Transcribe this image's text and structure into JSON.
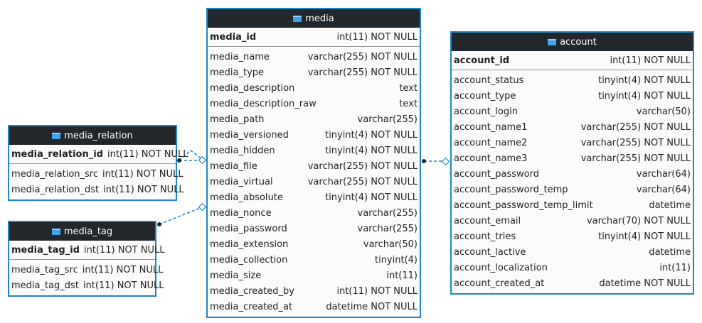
{
  "tables": [
    {
      "name": "media",
      "primary_key": {
        "name": "media_id",
        "type": "int(11) NOT NULL"
      },
      "columns": [
        {
          "name": "media_name",
          "type": "varchar(255) NOT NULL"
        },
        {
          "name": "media_type",
          "type": "varchar(255) NOT NULL"
        },
        {
          "name": "media_description",
          "type": "text"
        },
        {
          "name": "media_description_raw",
          "type": "text"
        },
        {
          "name": "media_path",
          "type": "varchar(255)"
        },
        {
          "name": "media_versioned",
          "type": "tinyint(4) NOT NULL"
        },
        {
          "name": "media_hidden",
          "type": "tinyint(4) NOT NULL"
        },
        {
          "name": "media_file",
          "type": "varchar(255) NOT NULL"
        },
        {
          "name": "media_virtual",
          "type": "varchar(255) NOT NULL"
        },
        {
          "name": "media_absolute",
          "type": "tinyint(4) NOT NULL"
        },
        {
          "name": "media_nonce",
          "type": "varchar(255)"
        },
        {
          "name": "media_password",
          "type": "varchar(255)"
        },
        {
          "name": "media_extension",
          "type": "varchar(50)"
        },
        {
          "name": "media_collection",
          "type": "tinyint(4)"
        },
        {
          "name": "media_size",
          "type": "int(11)"
        },
        {
          "name": "media_created_by",
          "type": "int(11) NOT NULL"
        },
        {
          "name": "media_created_at",
          "type": "datetime NOT NULL"
        }
      ]
    },
    {
      "name": "account",
      "primary_key": {
        "name": "account_id",
        "type": "int(11) NOT NULL"
      },
      "columns": [
        {
          "name": "account_status",
          "type": "tinyint(4) NOT NULL"
        },
        {
          "name": "account_type",
          "type": "tinyint(4) NOT NULL"
        },
        {
          "name": "account_login",
          "type": "varchar(50)"
        },
        {
          "name": "account_name1",
          "type": "varchar(255) NOT NULL"
        },
        {
          "name": "account_name2",
          "type": "varchar(255) NOT NULL"
        },
        {
          "name": "account_name3",
          "type": "varchar(255) NOT NULL"
        },
        {
          "name": "account_password",
          "type": "varchar(64)"
        },
        {
          "name": "account_password_temp",
          "type": "varchar(64)"
        },
        {
          "name": "account_password_temp_limit",
          "type": "datetime"
        },
        {
          "name": "account_email",
          "type": "varchar(70) NOT NULL"
        },
        {
          "name": "account_tries",
          "type": "tinyint(4) NOT NULL"
        },
        {
          "name": "account_lactive",
          "type": "datetime"
        },
        {
          "name": "account_localization",
          "type": "int(11)"
        },
        {
          "name": "account_created_at",
          "type": "datetime NOT NULL"
        }
      ]
    },
    {
      "name": "media_relation",
      "primary_key": {
        "name": "media_relation_id",
        "type": "int(11) NOT NULL"
      },
      "columns": [
        {
          "name": "media_relation_src",
          "type": "int(11) NOT NULL"
        },
        {
          "name": "media_relation_dst",
          "type": "int(11) NOT NULL"
        }
      ]
    },
    {
      "name": "media_tag",
      "primary_key": {
        "name": "media_tag_id",
        "type": "int(11) NOT NULL"
      },
      "columns": [
        {
          "name": "media_tag_src",
          "type": "int(11) NOT NULL"
        },
        {
          "name": "media_tag_dst",
          "type": "int(11) NOT NULL"
        }
      ]
    }
  ]
}
